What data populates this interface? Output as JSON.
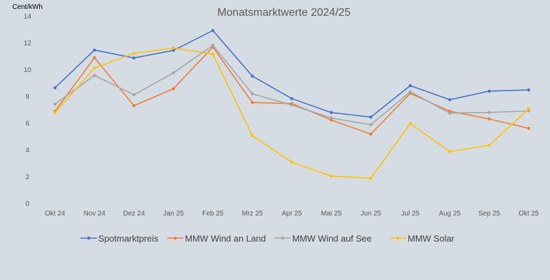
{
  "chart_data": {
    "type": "line",
    "title": "Monatsmarktwerte 2024/25",
    "ylabel": "Cent/kWh",
    "xlabel": "",
    "ylim": [
      0,
      14
    ],
    "yticks": [
      "0",
      "2",
      "4",
      "6",
      "8",
      "10",
      "12",
      "14"
    ],
    "grid": false,
    "legend": "bottom",
    "categories": [
      "Okt 24",
      "Nov 24",
      "Dez 24",
      "Jan 25",
      "Feb 25",
      "Mrz 25",
      "Apr 25",
      "Mai 25",
      "Jun 25",
      "Jul 25",
      "Aug 25",
      "Sep 25",
      "Okt 25"
    ],
    "series": [
      {
        "name": "Spotmarktpreis",
        "color": "#4472c4",
        "values": [
          8.62,
          11.44,
          10.85,
          11.41,
          12.9,
          9.49,
          7.81,
          6.77,
          6.43,
          8.78,
          7.73,
          8.37,
          8.46
        ]
      },
      {
        "name": "MMW Wind an Land",
        "color": "#ed7d31",
        "values": [
          6.86,
          10.87,
          7.28,
          8.55,
          11.66,
          7.52,
          7.44,
          6.21,
          5.16,
          8.2,
          6.87,
          6.29,
          5.59
        ]
      },
      {
        "name": "MMW Wind auf See",
        "color": "#a5a5a5",
        "values": [
          7.4,
          9.54,
          8.1,
          9.74,
          11.79,
          8.17,
          7.33,
          6.36,
          5.86,
          8.32,
          6.73,
          6.78,
          6.89
        ]
      },
      {
        "name": "MMW Solar",
        "color": "#ffc000",
        "values": [
          6.77,
          10.09,
          11.19,
          11.59,
          11.13,
          5.04,
          3.06,
          2.02,
          1.86,
          5.95,
          3.85,
          4.32,
          7.04
        ]
      }
    ]
  }
}
